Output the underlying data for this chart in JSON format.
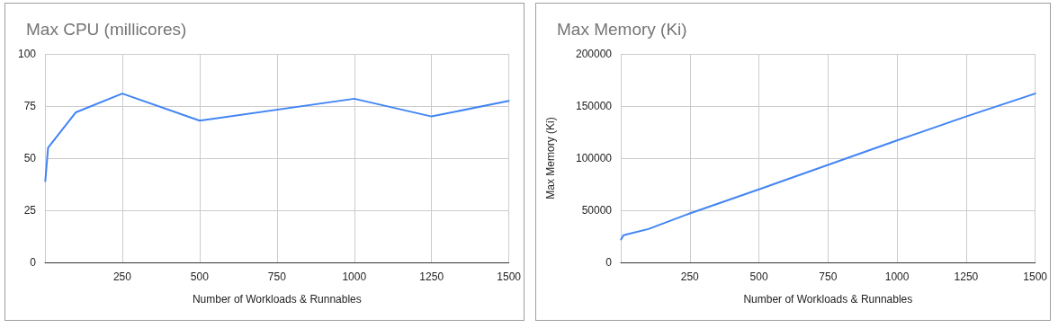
{
  "chart_data": [
    {
      "type": "line",
      "title": "Max CPU (millicores)",
      "xlabel": "Number of Workloads & Runnables",
      "x": [
        1,
        10,
        100,
        250,
        500,
        1000,
        1250,
        1500
      ],
      "series": [
        {
          "color": "#4285f4",
          "values": [
            39,
            55,
            72,
            81,
            68,
            78.5,
            70,
            77.5
          ]
        }
      ],
      "xlim": [
        0,
        1500
      ],
      "xticks": [
        {
          "value": 0,
          "label": null
        },
        250,
        500,
        750,
        1000,
        1250,
        1500
      ],
      "ylim": [
        0,
        100
      ],
      "yticks": [
        0,
        25,
        50,
        75,
        100
      ],
      "grid": true,
      "marker": "none",
      "line_style": "solid"
    },
    {
      "type": "line",
      "title": "Max Memory (Ki)",
      "xlabel": "Number of Workloads & Runnables",
      "ylabel": "Max Memory (Ki)",
      "x": [
        1,
        10,
        100,
        250,
        500,
        1000,
        1250,
        1500
      ],
      "series": [
        {
          "color": "#4285f4",
          "values": [
            22000,
            26000,
            32000,
            47000,
            70000,
            117000,
            140000,
            162000
          ]
        }
      ],
      "xlim": [
        0,
        1500
      ],
      "xticks": [
        {
          "value": 0,
          "label": null
        },
        250,
        500,
        750,
        1000,
        1250,
        1500
      ],
      "ylim": [
        0,
        200000
      ],
      "yticks": [
        0,
        50000,
        100000,
        150000,
        200000
      ],
      "grid": true,
      "marker": "none",
      "line_style": "solid"
    }
  ]
}
